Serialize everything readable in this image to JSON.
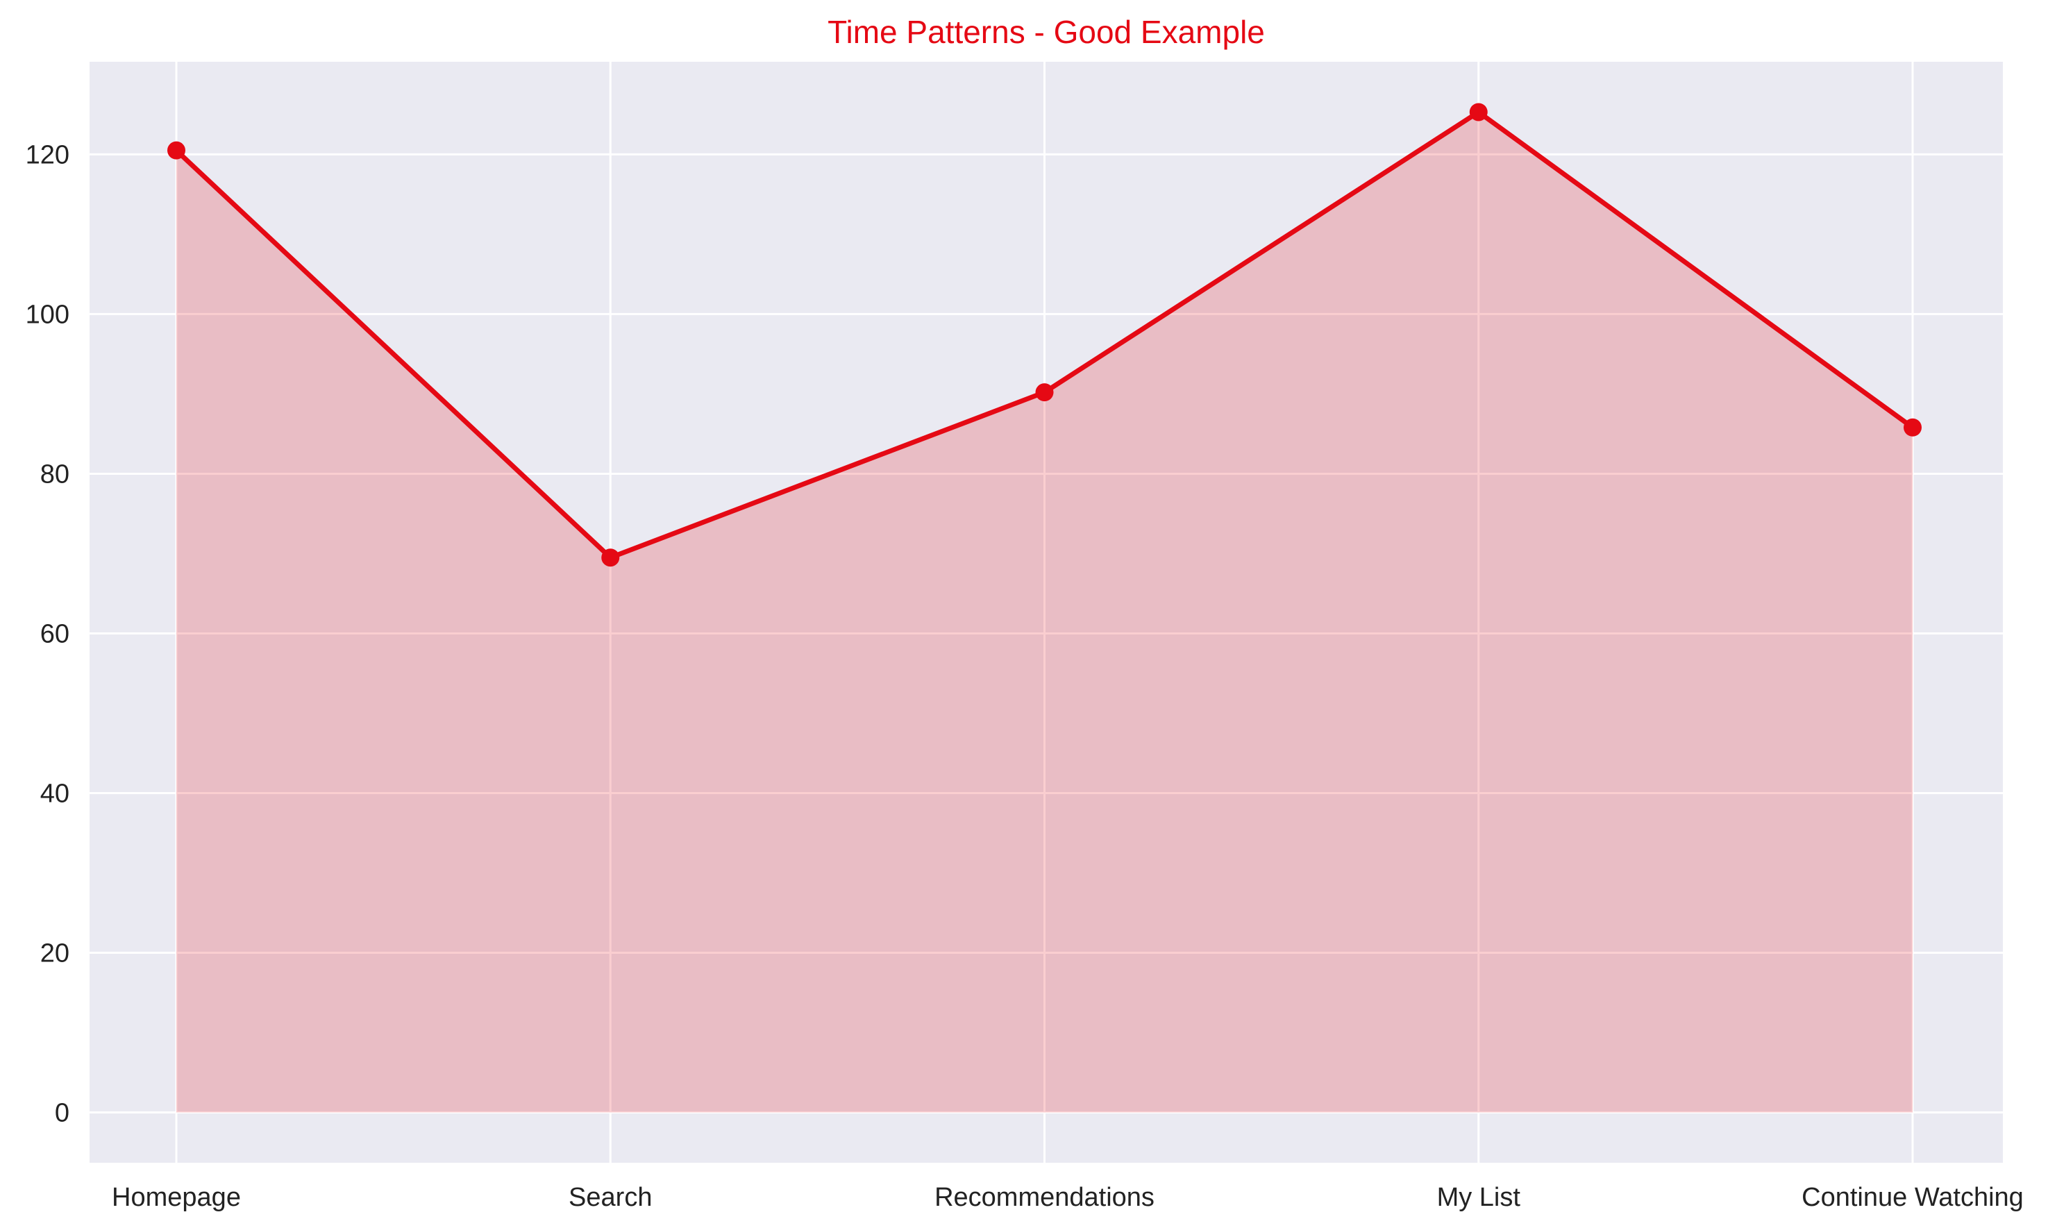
{
  "chart_data": {
    "type": "area",
    "title": "Time Patterns - Good Example",
    "xlabel": "",
    "ylabel": "",
    "categories": [
      "Homepage",
      "Search",
      "Recommendations",
      "My List",
      "Continue Watching"
    ],
    "values": [
      120.5,
      69.5,
      90.2,
      125.3,
      85.8
    ],
    "ylim": [
      -6.3,
      131.6
    ],
    "yticks": [
      0,
      20,
      40,
      60,
      80,
      100,
      120
    ],
    "grid": true,
    "legend": "none",
    "colors": {
      "line": "#e50914",
      "fill": "#e50914",
      "plot_background": "#eaeaf2",
      "grid": "#ffffff"
    }
  }
}
